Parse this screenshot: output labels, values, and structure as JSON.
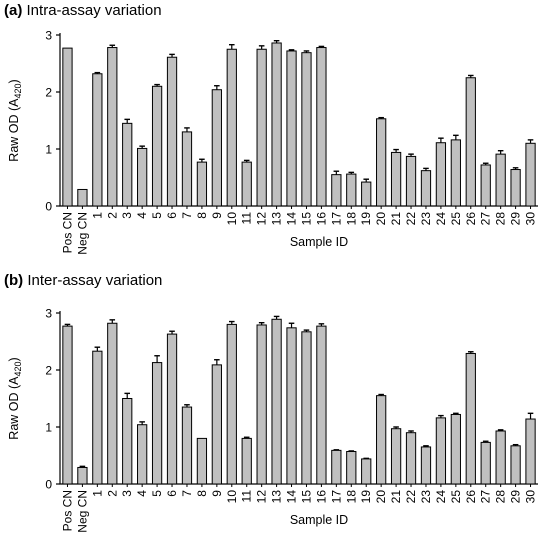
{
  "chart_data": [
    {
      "type": "bar",
      "panel_label": "(a)",
      "title": "Intra-assay variation",
      "xlabel": "Sample ID",
      "ylabel": "Raw OD (A420)",
      "ylabel_main": "Raw OD (A",
      "ylabel_sub": "420",
      "ylabel_close": ")",
      "ylim": [
        0,
        3
      ],
      "yticks": [
        0,
        1,
        2,
        3
      ],
      "bar_color": "#c0c0c0",
      "categories": [
        "Pos CN",
        "Neg CN",
        "1",
        "2",
        "3",
        "4",
        "5",
        "6",
        "7",
        "8",
        "9",
        "10",
        "11",
        "12",
        "13",
        "14",
        "15",
        "16",
        "17",
        "18",
        "19",
        "20",
        "21",
        "22",
        "23",
        "24",
        "25",
        "26",
        "27",
        "28",
        "29",
        "30"
      ],
      "values": [
        2.77,
        0.29,
        2.32,
        2.78,
        1.45,
        1.01,
        2.1,
        2.61,
        1.3,
        0.77,
        2.04,
        2.75,
        0.77,
        2.75,
        2.86,
        2.72,
        2.69,
        2.78,
        0.55,
        0.56,
        0.42,
        1.53,
        0.94,
        0.87,
        0.62,
        1.11,
        1.16,
        2.25,
        0.72,
        0.91,
        0.64,
        1.1
      ],
      "errors": [
        0,
        0,
        0.02,
        0.04,
        0.07,
        0.04,
        0.03,
        0.05,
        0.07,
        0.05,
        0.07,
        0.08,
        0.03,
        0.06,
        0.04,
        0.02,
        0.03,
        0.02,
        0.06,
        0.03,
        0.05,
        0.02,
        0.05,
        0.04,
        0.04,
        0.08,
        0.08,
        0.04,
        0.03,
        0.06,
        0.03,
        0.06
      ]
    },
    {
      "type": "bar",
      "panel_label": "(b)",
      "title": "Inter-assay variation",
      "xlabel": "Sample ID",
      "ylabel": "Raw OD (A420)",
      "ylabel_main": "Raw OD (A",
      "ylabel_sub": "420",
      "ylabel_close": ")",
      "ylim": [
        0,
        3
      ],
      "yticks": [
        0,
        1,
        2,
        3
      ],
      "bar_color": "#c0c0c0",
      "categories": [
        "Pos CN",
        "Neg CN",
        "1",
        "2",
        "3",
        "4",
        "5",
        "6",
        "7",
        "8",
        "9",
        "10",
        "11",
        "12",
        "13",
        "14",
        "15",
        "16",
        "17",
        "18",
        "19",
        "20",
        "21",
        "22",
        "23",
        "24",
        "25",
        "26",
        "27",
        "28",
        "29",
        "30"
      ],
      "values": [
        2.77,
        0.29,
        2.33,
        2.82,
        1.5,
        1.04,
        2.13,
        2.63,
        1.35,
        0.8,
        2.09,
        2.8,
        0.8,
        2.79,
        2.89,
        2.74,
        2.67,
        2.77,
        0.59,
        0.57,
        0.44,
        1.55,
        0.97,
        0.9,
        0.65,
        1.16,
        1.22,
        2.29,
        0.73,
        0.93,
        0.67,
        1.14
      ],
      "errors": [
        0.03,
        0.02,
        0.07,
        0.06,
        0.09,
        0.05,
        0.12,
        0.05,
        0.04,
        0,
        0.09,
        0.05,
        0.02,
        0.04,
        0.05,
        0.08,
        0.03,
        0.04,
        0.01,
        0.01,
        0.01,
        0.02,
        0.03,
        0.03,
        0.02,
        0.04,
        0.02,
        0.03,
        0.02,
        0.02,
        0.02,
        0.1
      ]
    }
  ]
}
